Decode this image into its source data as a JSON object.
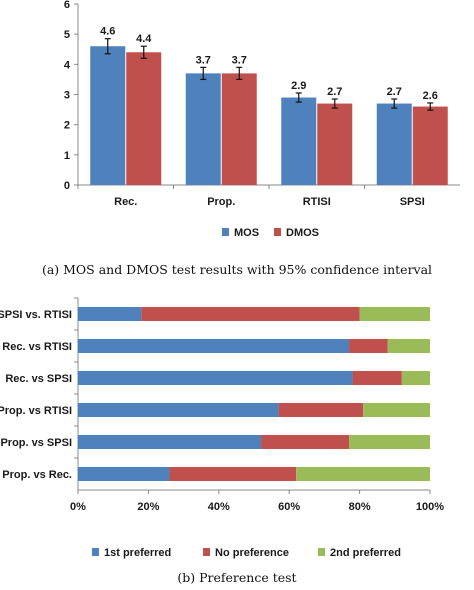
{
  "chart_data": [
    {
      "type": "bar",
      "categories": [
        "Rec.",
        "Prop.",
        "RTISI",
        "SPSI"
      ],
      "series": [
        {
          "name": "MOS",
          "values": [
            4.6,
            3.7,
            2.9,
            2.7
          ],
          "errors": [
            0.25,
            0.2,
            0.15,
            0.15
          ],
          "color": "#4F81BD"
        },
        {
          "name": "DMOS",
          "values": [
            4.4,
            3.7,
            2.7,
            2.6
          ],
          "errors": [
            0.2,
            0.2,
            0.15,
            0.12
          ],
          "color": "#C0504D"
        }
      ],
      "ylim": [
        0,
        6
      ],
      "yticks": [
        "0",
        "1",
        "2",
        "3",
        "4",
        "5",
        "6"
      ],
      "data_labels": [
        [
          "4.6",
          "3.7",
          "2.9",
          "2.7"
        ],
        [
          "4.4",
          "3.7",
          "2.7",
          "2.6"
        ]
      ],
      "grid": false,
      "legend": "bottom",
      "caption": "(a) MOS and DMOS test results with 95% confidence interval"
    },
    {
      "type": "bar",
      "orientation": "horizontal",
      "stacked": true,
      "categories": [
        "SPSI vs. RTISI",
        "Rec. vs RTISI",
        "Rec. vs SPSI",
        "Prop. vs RTISI",
        "Prop. vs SPSI",
        "Prop. vs Rec."
      ],
      "series": [
        {
          "name": "1st preferred",
          "values": [
            18,
            77,
            78,
            57,
            52,
            26
          ],
          "color": "#4F81BD"
        },
        {
          "name": "No preference",
          "values": [
            62,
            11,
            14,
            24,
            25,
            36
          ],
          "color": "#C0504D"
        },
        {
          "name": "2nd preferred",
          "values": [
            20,
            12,
            8,
            19,
            23,
            38
          ],
          "color": "#9BBB59"
        }
      ],
      "xlim": [
        0,
        100
      ],
      "xticks": [
        "0%",
        "20%",
        "40%",
        "60%",
        "80%",
        "100%"
      ],
      "grid": false,
      "legend": "bottom",
      "caption": "(b) Preference test"
    }
  ]
}
